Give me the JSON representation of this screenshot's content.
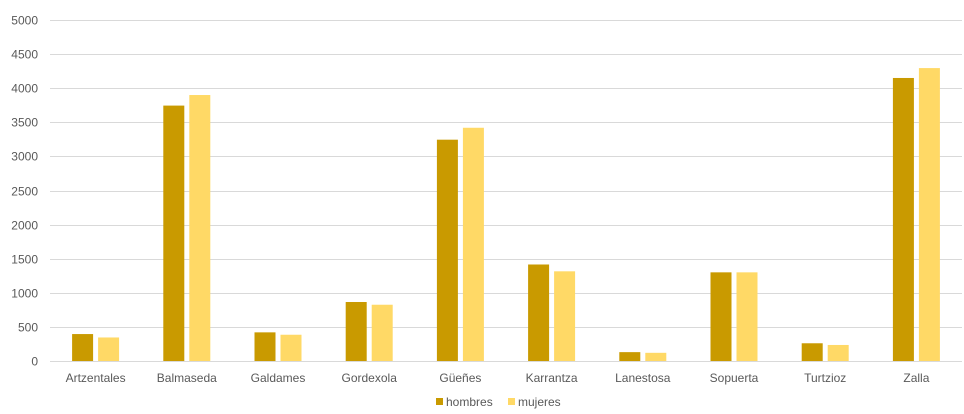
{
  "chart_data": {
    "type": "bar",
    "categories": [
      "Artzentales",
      "Balmaseda",
      "Galdames",
      "Gordexola",
      "Güeñes",
      "Karrantza",
      "Lanestosa",
      "Sopuerta",
      "Turtzioz",
      "Zalla"
    ],
    "series": [
      {
        "name": "hombres",
        "color": "#c99a00",
        "values": [
          395,
          3745,
          420,
          865,
          3245,
          1415,
          130,
          1300,
          260,
          4150
        ]
      },
      {
        "name": "mujeres",
        "color": "#ffd966",
        "values": [
          345,
          3900,
          385,
          825,
          3420,
          1315,
          120,
          1300,
          235,
          4295
        ]
      }
    ],
    "ylim": [
      0,
      5000
    ],
    "yticks": [
      0,
      500,
      1000,
      1500,
      2000,
      2500,
      3000,
      3500,
      4000,
      4500,
      5000
    ],
    "grid": true,
    "legend_position": "bottom"
  }
}
